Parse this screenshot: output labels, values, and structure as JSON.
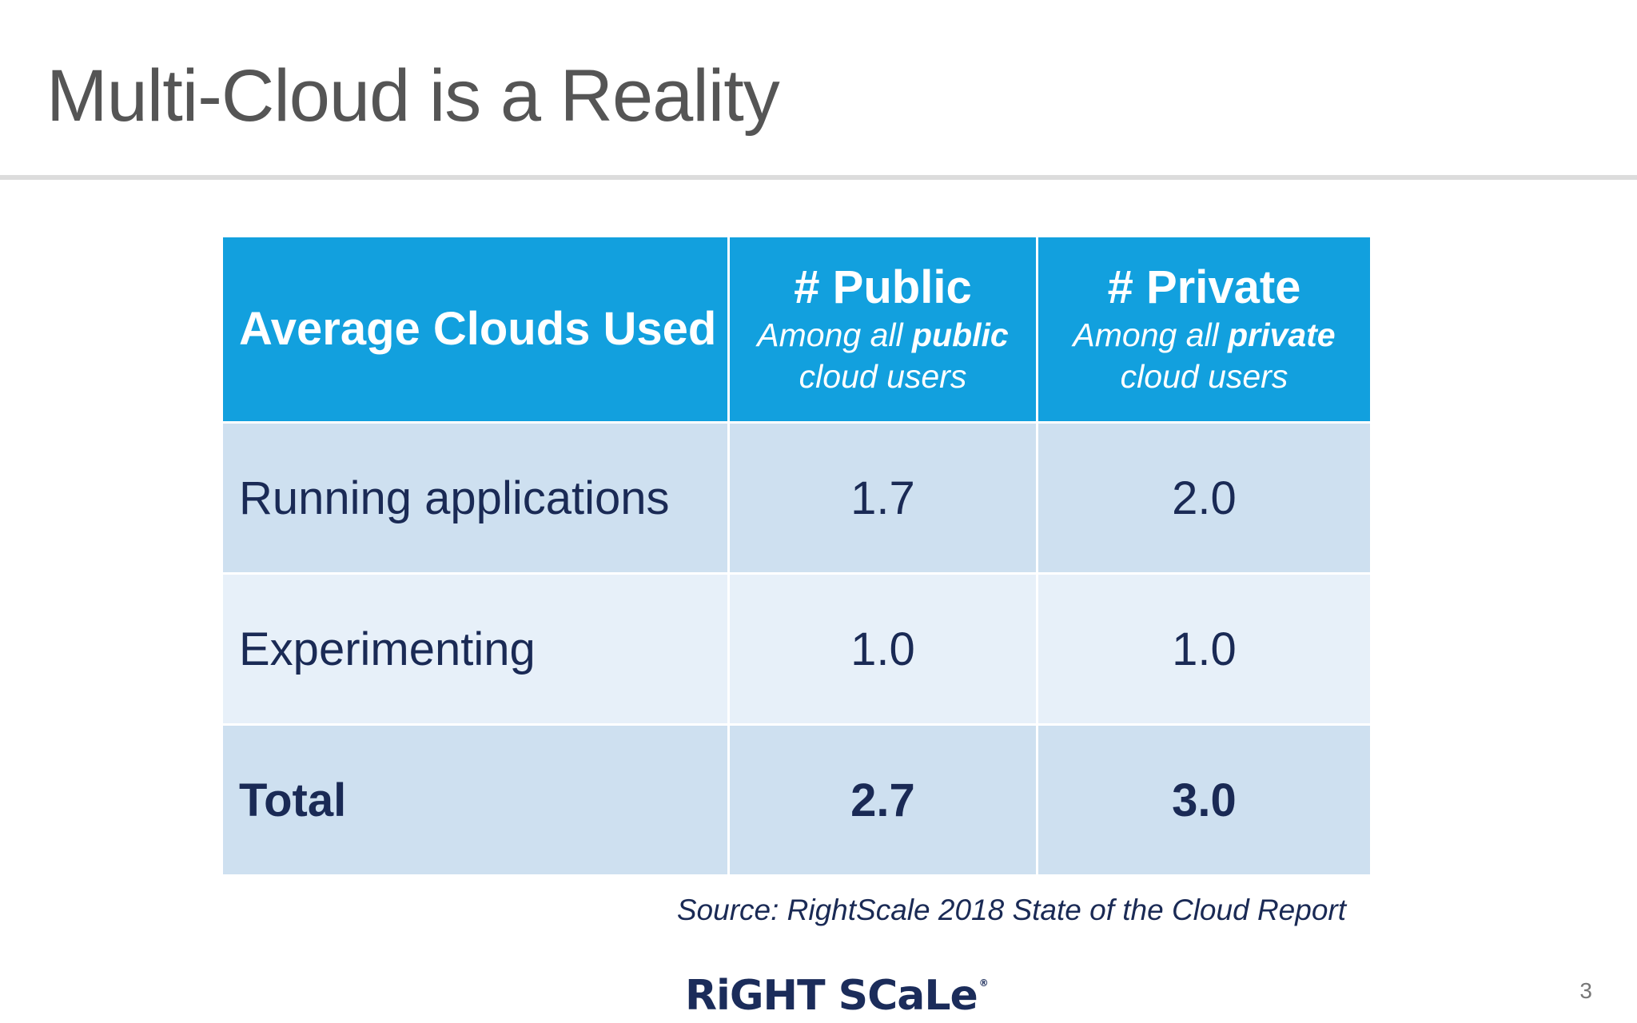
{
  "slide": {
    "title": "Multi-Cloud is a Reality",
    "page_number": "3",
    "source": "Source: RightScale 2018 State of the Cloud Report",
    "logo_text": "RiGHT SCaLe",
    "logo_mark": "®"
  },
  "table": {
    "header": {
      "first": "Average Clouds Used",
      "public": {
        "title": "# Public",
        "sub_pre": "Among all ",
        "sub_bold": "public",
        "sub_post": " cloud users"
      },
      "private": {
        "title": "# Private",
        "sub_pre": "Among all ",
        "sub_bold": "private",
        "sub_post": " cloud users"
      }
    },
    "rows": [
      {
        "label": "Running applications",
        "public": "1.7",
        "private": "2.0"
      },
      {
        "label": "Experimenting",
        "public": "1.0",
        "private": "1.0"
      },
      {
        "label": "Total",
        "public": "2.7",
        "private": "3.0"
      }
    ]
  },
  "colors": {
    "header_blue": "#12a0de",
    "row_dark": "#cee0f0",
    "row_light": "#e7f0f9",
    "text_navy": "#1a2a55",
    "title_gray": "#555555"
  }
}
